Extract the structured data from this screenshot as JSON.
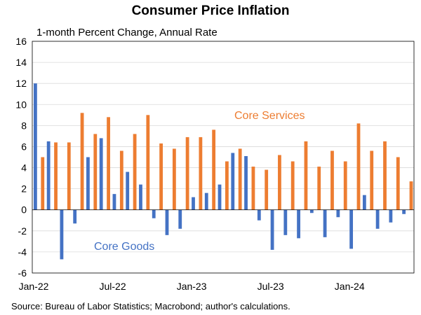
{
  "chart_data": {
    "type": "bar",
    "title": "Consumer Price Inflation",
    "subtitle": "1-month Percent Change, Annual Rate",
    "source": "Source: Bureau of Labor Statistics; Macrobond; author's calculations.",
    "ylim": [
      -6,
      16
    ],
    "yticks": [
      16,
      14,
      12,
      10,
      8,
      6,
      4,
      2,
      0,
      -2,
      -4,
      -6
    ],
    "xtick_labels": [
      {
        "label": "Jan-22",
        "index": 0
      },
      {
        "label": "Jul-22",
        "index": 6
      },
      {
        "label": "Jan-23",
        "index": 12
      },
      {
        "label": "Jul-23",
        "index": 18
      },
      {
        "label": "Jan-24",
        "index": 24
      }
    ],
    "grid": true,
    "categories": [
      "Jan-22",
      "Feb-22",
      "Mar-22",
      "Apr-22",
      "May-22",
      "Jun-22",
      "Jul-22",
      "Aug-22",
      "Sep-22",
      "Oct-22",
      "Nov-22",
      "Dec-22",
      "Jan-23",
      "Feb-23",
      "Mar-23",
      "Apr-23",
      "May-23",
      "Jun-23",
      "Jul-23",
      "Aug-23",
      "Sep-23",
      "Oct-23",
      "Nov-23",
      "Dec-23",
      "Jan-24",
      "Feb-24",
      "Mar-24",
      "Apr-24",
      "May-24"
    ],
    "series": [
      {
        "name": "Core Goods",
        "color": "#4472C4",
        "values": [
          12.0,
          6.5,
          -4.7,
          -1.3,
          5.0,
          6.8,
          1.5,
          3.6,
          2.4,
          -0.8,
          -2.4,
          -1.8,
          1.2,
          1.6,
          2.4,
          5.4,
          5.1,
          -1.0,
          -3.8,
          -2.4,
          -2.7,
          -0.3,
          -2.6,
          -0.7,
          -3.7,
          1.4,
          -1.8,
          -1.2,
          -0.4
        ]
      },
      {
        "name": "Core Services",
        "color": "#ED7D31",
        "values": [
          5.0,
          6.4,
          6.4,
          9.2,
          7.2,
          8.8,
          5.6,
          7.2,
          9.0,
          6.3,
          5.8,
          6.9,
          6.9,
          7.6,
          4.6,
          5.8,
          4.1,
          3.8,
          5.2,
          4.6,
          6.5,
          4.1,
          5.6,
          4.6,
          8.2,
          5.6,
          6.5,
          5.0,
          2.7
        ]
      }
    ]
  }
}
